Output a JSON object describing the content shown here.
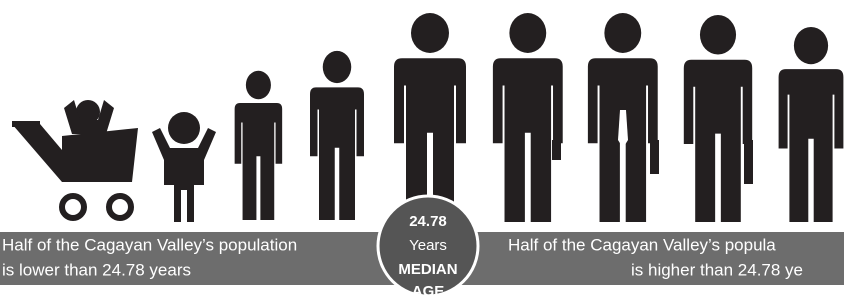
{
  "left_text": {
    "line1": "Half of the Cagayan Valley’s  population",
    "line2": "is lower than 24.78 years"
  },
  "median": {
    "value": "24.78",
    "unit": "Years",
    "label1": "MEDIAN",
    "label2": "AGE"
  },
  "right_text": {
    "line1": "Half of the Cagayan Valley’s  popula",
    "line2": "is higher than 24.78 ye"
  }
}
